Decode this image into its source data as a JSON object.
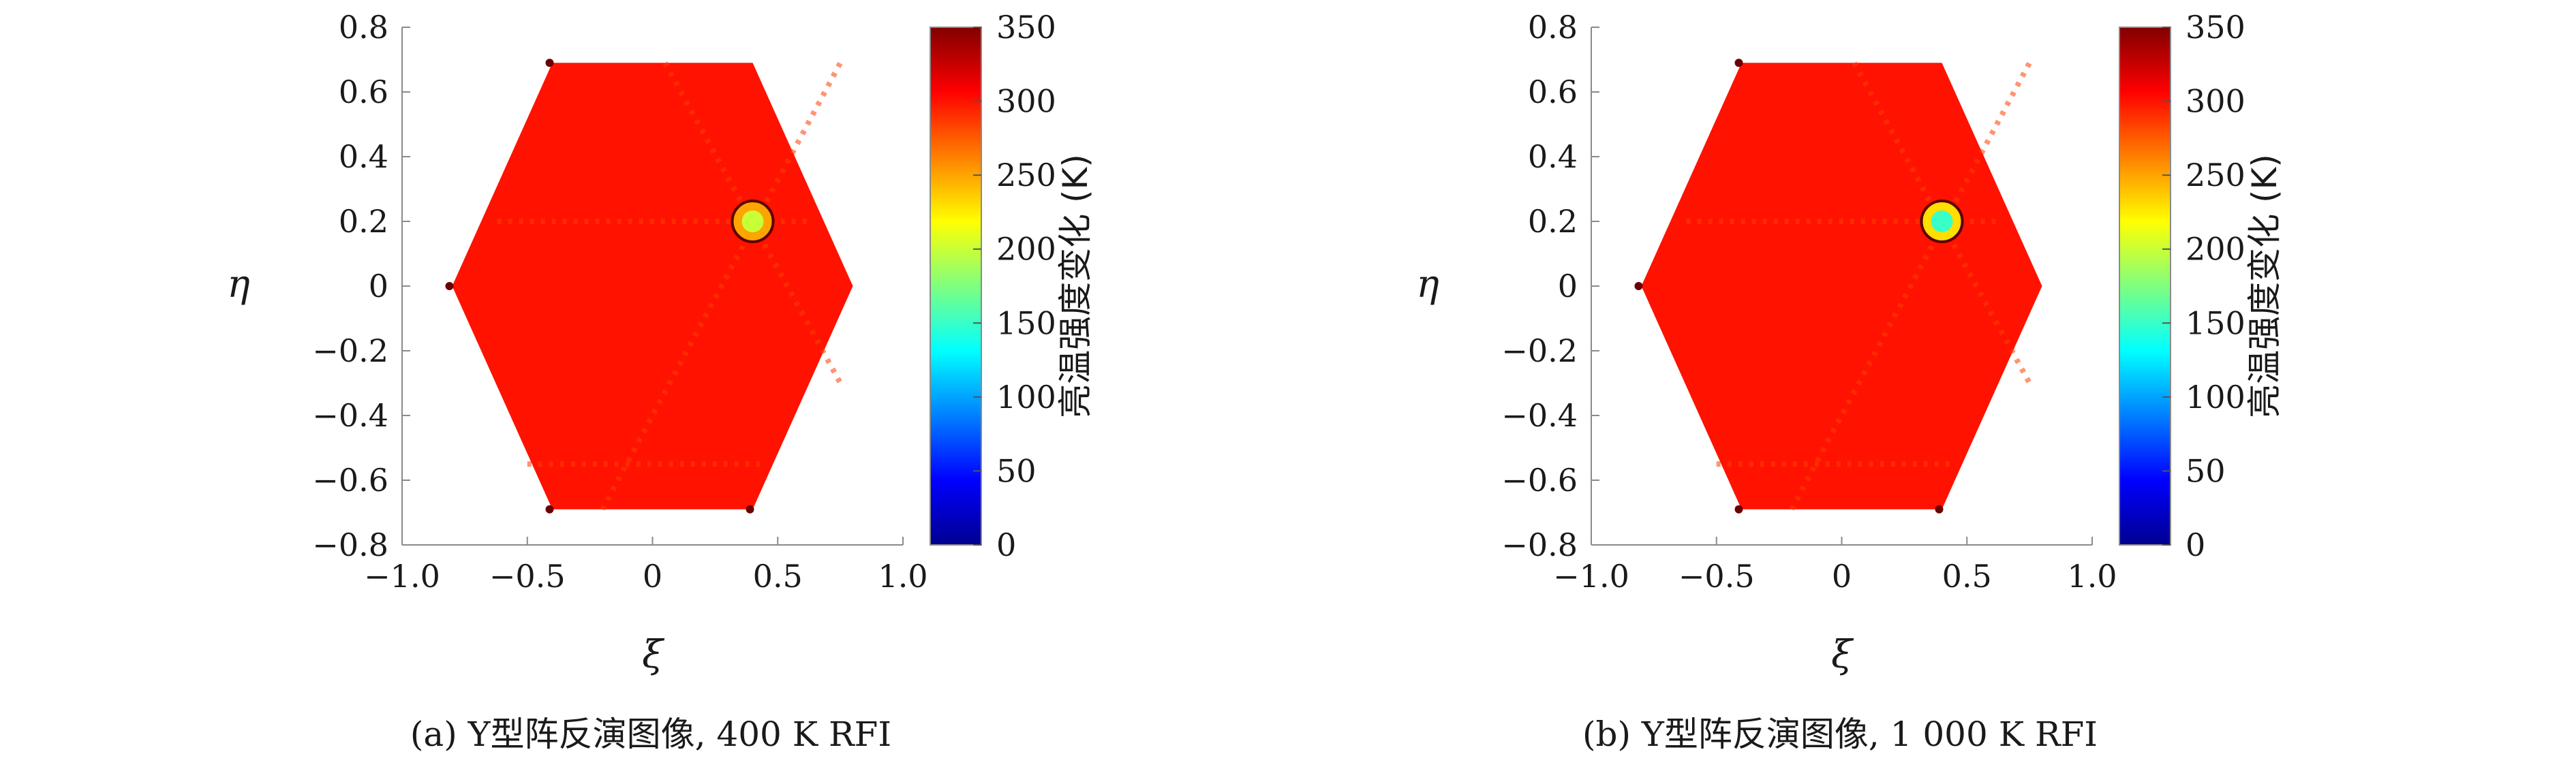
{
  "chart_data": [
    {
      "type": "heatmap",
      "caption": "(a) Y型阵反演图像, 400 K RFI",
      "xlabel": "ξ",
      "ylabel": "η",
      "xlim": [
        -1.0,
        1.0
      ],
      "ylim": [
        -0.8,
        0.8
      ],
      "xticks": [
        -1.0,
        -0.5,
        0,
        0.5,
        1.0
      ],
      "xtick_labels": [
        "−1.0",
        "−0.5",
        "0",
        "0.5",
        "1.0"
      ],
      "yticks": [
        0.8,
        0.6,
        0.4,
        0.2,
        0,
        -0.2,
        -0.4,
        -0.6,
        -0.8
      ],
      "ytick_labels": [
        "0.8",
        "0.6",
        "0.4",
        "0.2",
        "0",
        "−0.2",
        "−0.4",
        "−0.6",
        "−0.8"
      ],
      "colorbar": {
        "label": "亮温强度变化 (K)",
        "range": [
          0,
          350
        ],
        "ticks": [
          350,
          300,
          250,
          200,
          150,
          100,
          50,
          0
        ],
        "colormap": "jet"
      },
      "hexagon_vertices": [
        [
          0.8,
          0
        ],
        [
          0.4,
          0.69
        ],
        [
          -0.4,
          0.69
        ],
        [
          -0.8,
          0
        ],
        [
          -0.4,
          -0.69
        ],
        [
          0.4,
          -0.69
        ]
      ],
      "background_value": 300,
      "rfi_source": {
        "xi": 0.4,
        "eta": 0.2,
        "outer_value": 250,
        "inner_value": 200
      },
      "rfi_power_K": 400
    },
    {
      "type": "heatmap",
      "caption": "(b) Y型阵反演图像, 1 000 K RFI",
      "xlabel": "ξ",
      "ylabel": "η",
      "xlim": [
        -1.0,
        1.0
      ],
      "ylim": [
        -0.8,
        0.8
      ],
      "xticks": [
        -1.0,
        -0.5,
        0,
        0.5,
        1.0
      ],
      "xtick_labels": [
        "−1.0",
        "−0.5",
        "0",
        "0.5",
        "1.0"
      ],
      "yticks": [
        0.8,
        0.6,
        0.4,
        0.2,
        0,
        -0.2,
        -0.4,
        -0.6,
        -0.8
      ],
      "ytick_labels": [
        "0.8",
        "0.6",
        "0.4",
        "0.2",
        "0",
        "−0.2",
        "−0.4",
        "−0.6",
        "−0.8"
      ],
      "colorbar": {
        "label": "亮温强度变化 (K)",
        "range": [
          0,
          350
        ],
        "ticks": [
          350,
          300,
          250,
          200,
          150,
          100,
          50,
          0
        ],
        "colormap": "jet"
      },
      "hexagon_vertices": [
        [
          0.8,
          0
        ],
        [
          0.4,
          0.69
        ],
        [
          -0.4,
          0.69
        ],
        [
          -0.8,
          0
        ],
        [
          -0.4,
          -0.69
        ],
        [
          0.4,
          -0.69
        ]
      ],
      "background_value": 300,
      "rfi_source": {
        "xi": 0.4,
        "eta": 0.2,
        "outer_value": 230,
        "inner_value": 150
      },
      "rfi_power_K": 1000
    }
  ]
}
